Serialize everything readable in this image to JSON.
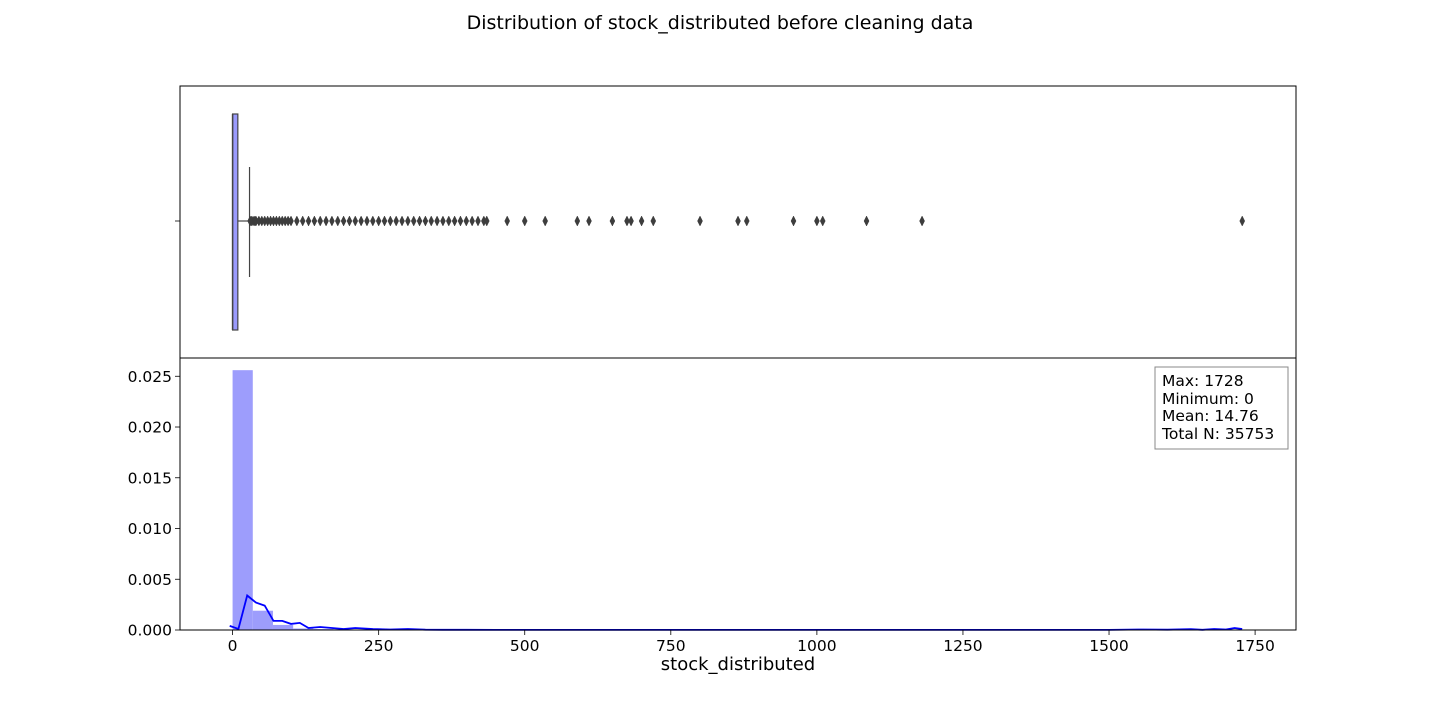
{
  "figure": {
    "title": "Distribution of stock_distributed before cleaning data"
  },
  "chart_data": [
    {
      "type": "box",
      "variable": "stock_distributed",
      "box": {
        "q1": 0,
        "median": 0,
        "q3": 9,
        "whisker_low": 0,
        "whisker_high": 29
      },
      "box_color": "#9a9afc",
      "outliers": [
        30,
        32,
        35,
        38,
        40,
        45,
        50,
        55,
        60,
        65,
        70,
        75,
        80,
        85,
        90,
        95,
        100,
        110,
        120,
        130,
        140,
        150,
        160,
        170,
        180,
        190,
        200,
        210,
        220,
        230,
        240,
        250,
        260,
        270,
        280,
        290,
        300,
        310,
        320,
        330,
        340,
        350,
        360,
        370,
        380,
        390,
        400,
        410,
        420,
        430,
        435,
        470,
        500,
        535,
        590,
        610,
        650,
        675,
        682,
        700,
        720,
        800,
        865,
        880,
        960,
        1000,
        1010,
        1085,
        1180,
        1728
      ],
      "xlim": [
        -90,
        1820
      ]
    },
    {
      "type": "histogram",
      "xlabel": "stock_distributed",
      "ylabel": "",
      "xlim": [
        -90,
        1820
      ],
      "ylim": [
        0,
        0.0268
      ],
      "xticks": [
        0,
        250,
        500,
        750,
        1000,
        1250,
        1500,
        1750
      ],
      "xtick_labels": [
        "0",
        "250",
        "500",
        "750",
        "1000",
        "1250",
        "1500",
        "1750"
      ],
      "yticks": [
        0,
        0.005,
        0.01,
        0.015,
        0.02,
        0.025
      ],
      "ytick_labels": [
        "0.000",
        "0.005",
        "0.010",
        "0.015",
        "0.020",
        "0.025"
      ],
      "bar_color": "#9d9dfc",
      "bins": [
        {
          "x0": 0,
          "x1": 34.56,
          "density": 0.0256
        },
        {
          "x0": 34.56,
          "x1": 69.12,
          "density": 0.0019
        },
        {
          "x0": 69.12,
          "x1": 103.68,
          "density": 0.0005
        },
        {
          "x0": 103.68,
          "x1": 138.24,
          "density": 0.00015
        },
        {
          "x0": 138.24,
          "x1": 172.8,
          "density": 0.0001
        },
        {
          "x0": 172.8,
          "x1": 207.36,
          "density": 6e-05
        },
        {
          "x0": 207.36,
          "x1": 241.92,
          "density": 4e-05
        },
        {
          "x0": 241.92,
          "x1": 276.48,
          "density": 3e-05
        },
        {
          "x0": 276.48,
          "x1": 311.04,
          "density": 2e-05
        }
      ],
      "kde": {
        "color": "#0000ff",
        "x": [
          -5,
          10,
          25,
          40,
          55,
          70,
          85,
          100,
          115,
          130,
          150,
          170,
          190,
          210,
          240,
          270,
          300,
          330,
          360,
          400,
          450,
          500,
          600,
          700,
          800,
          900,
          1000,
          1100,
          1200,
          1300,
          1400,
          1500,
          1550,
          1600,
          1640,
          1660,
          1680,
          1700,
          1715,
          1728
        ],
        "y": [
          0.0004,
          0.0001,
          0.0034,
          0.0027,
          0.0024,
          0.0009,
          0.0009,
          0.0006,
          0.0007,
          0.0002,
          0.0003,
          0.0002,
          0.0001,
          0.0002,
          0.0001,
          5e-05,
          0.0001,
          3e-05,
          2e-05,
          2e-05,
          1e-05,
          1e-05,
          5e-06,
          5e-06,
          5e-06,
          5e-06,
          5e-06,
          5e-06,
          5e-06,
          5e-06,
          5e-06,
          5e-06,
          5e-05,
          3e-05,
          8e-05,
          2e-05,
          0.0001,
          5e-05,
          0.0002,
          0.0001
        ]
      },
      "annotation": {
        "lines": [
          "Max: 1728",
          "Minimum: 0",
          "Mean: 14.76",
          "Total N: 35753"
        ],
        "placement": "top-right"
      }
    }
  ]
}
